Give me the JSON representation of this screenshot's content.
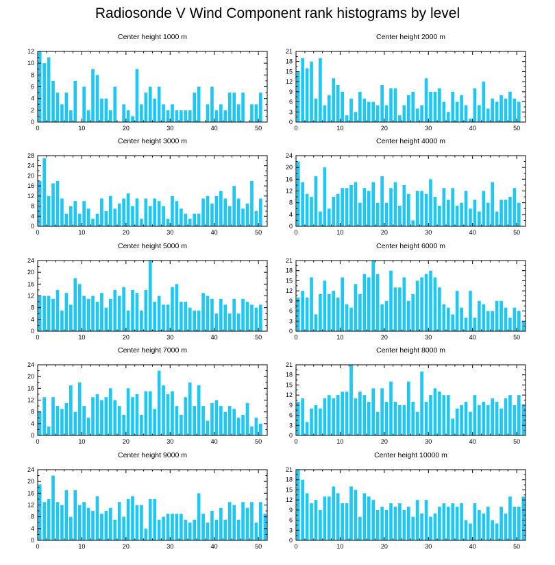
{
  "title": "Radiosonde V Wind Component rank histograms by level",
  "bar_color": "#1ec8f5",
  "chart_data": [
    {
      "type": "bar",
      "title": "Center height 1000 m",
      "xlim": [
        0,
        52
      ],
      "ylim": [
        0,
        12
      ],
      "xticks": [
        0,
        10,
        20,
        30,
        40,
        50
      ],
      "yticks": [
        0,
        2,
        4,
        6,
        8,
        10,
        12
      ],
      "values": [
        12,
        10,
        11,
        7,
        5,
        3,
        5,
        2,
        7,
        0,
        6,
        2,
        9,
        8,
        4,
        4,
        2,
        6,
        0,
        3,
        2,
        1,
        9,
        3,
        5,
        6,
        4,
        6,
        3,
        2,
        3,
        2,
        2,
        2,
        2,
        5,
        6,
        0,
        3,
        6,
        2,
        3,
        2,
        5,
        5,
        3,
        5,
        0,
        3,
        3,
        5
      ]
    },
    {
      "type": "bar",
      "title": "Center height 2000 m",
      "xlim": [
        0,
        52
      ],
      "ylim": [
        0,
        21
      ],
      "xticks": [
        0,
        10,
        20,
        30,
        40,
        50
      ],
      "yticks": [
        0,
        3,
        6,
        9,
        12,
        15,
        18,
        21
      ],
      "values": [
        15,
        19,
        16,
        18,
        7,
        19,
        5,
        8,
        13,
        11,
        9,
        2,
        7,
        3,
        9,
        7,
        6,
        6,
        5,
        11,
        5,
        10,
        10,
        2,
        5,
        8,
        9,
        4,
        5,
        13,
        9,
        9,
        10,
        6,
        3,
        9,
        6,
        8,
        5,
        1,
        10,
        5,
        12,
        4,
        7,
        6,
        8,
        7,
        9,
        7,
        6
      ]
    },
    {
      "type": "bar",
      "title": "Center height 3000 m",
      "xlim": [
        0,
        52
      ],
      "ylim": [
        0,
        28
      ],
      "xticks": [
        0,
        10,
        20,
        30,
        40,
        50
      ],
      "yticks": [
        0,
        4,
        8,
        12,
        16,
        20,
        24,
        28
      ],
      "values": [
        18,
        27,
        12,
        17,
        18,
        11,
        5,
        8,
        10,
        5,
        10,
        7,
        3,
        5,
        11,
        6,
        12,
        7,
        9,
        11,
        13,
        8,
        11,
        3,
        11,
        8,
        11,
        10,
        8,
        3,
        12,
        10,
        7,
        5,
        3,
        5,
        5,
        11,
        12,
        9,
        12,
        14,
        11,
        8,
        16,
        11,
        7,
        9,
        18,
        6,
        11
      ]
    },
    {
      "type": "bar",
      "title": "Center height 4000 m",
      "xlim": [
        0,
        52
      ],
      "ylim": [
        0,
        24
      ],
      "xticks": [
        0,
        10,
        20,
        30,
        40,
        50
      ],
      "yticks": [
        0,
        4,
        8,
        12,
        16,
        20,
        24
      ],
      "values": [
        22,
        15,
        11,
        10,
        17,
        5,
        20,
        6,
        10,
        11,
        13,
        13,
        14,
        15,
        8,
        13,
        12,
        15,
        8,
        17,
        8,
        13,
        15,
        7,
        14,
        11,
        2,
        12,
        12,
        11,
        16,
        10,
        7,
        13,
        9,
        13,
        7,
        8,
        12,
        6,
        9,
        5,
        12,
        8,
        15,
        5,
        9,
        9,
        10,
        13,
        8
      ]
    },
    {
      "type": "bar",
      "title": "Center height 5000 m",
      "xlim": [
        0,
        52
      ],
      "ylim": [
        0,
        24
      ],
      "xticks": [
        0,
        10,
        20,
        30,
        40,
        50
      ],
      "yticks": [
        0,
        4,
        8,
        12,
        16,
        20,
        24
      ],
      "values": [
        12,
        12,
        12,
        11,
        14,
        7,
        13,
        9,
        18,
        16,
        12,
        11,
        12,
        10,
        13,
        8,
        11,
        14,
        12,
        15,
        7,
        14,
        13,
        7,
        14,
        24,
        10,
        12,
        9,
        9,
        15,
        16,
        10,
        10,
        8,
        7,
        7,
        13,
        12,
        11,
        6,
        11,
        9,
        6,
        11,
        6,
        11,
        10,
        9,
        8,
        9
      ]
    },
    {
      "type": "bar",
      "title": "Center height 6000 m",
      "xlim": [
        0,
        52
      ],
      "ylim": [
        0,
        21
      ],
      "xticks": [
        0,
        10,
        20,
        30,
        40,
        50
      ],
      "yticks": [
        0,
        3,
        6,
        9,
        12,
        15,
        18,
        21
      ],
      "values": [
        10,
        12,
        10,
        16,
        5,
        11,
        15,
        11,
        12,
        10,
        16,
        8,
        7,
        14,
        11,
        17,
        16,
        21,
        17,
        8,
        9,
        18,
        13,
        13,
        16,
        9,
        11,
        15,
        16,
        17,
        18,
        16,
        13,
        8,
        7,
        5,
        12,
        7,
        4,
        12,
        4,
        9,
        8,
        6,
        6,
        9,
        9,
        7,
        4,
        7,
        6,
        3
      ]
    },
    {
      "type": "bar",
      "title": "Center height 7000 m",
      "xlim": [
        0,
        52
      ],
      "ylim": [
        0,
        24
      ],
      "xticks": [
        0,
        10,
        20,
        30,
        40,
        50
      ],
      "yticks": [
        0,
        4,
        8,
        12,
        16,
        20,
        24
      ],
      "values": [
        8,
        13,
        3,
        13,
        10,
        9,
        11,
        17,
        8,
        18,
        10,
        6,
        13,
        14,
        12,
        13,
        16,
        12,
        10,
        7,
        16,
        13,
        14,
        7,
        15,
        15,
        9,
        22,
        17,
        14,
        15,
        10,
        7,
        13,
        18,
        10,
        17,
        10,
        5,
        11,
        12,
        10,
        8,
        10,
        9,
        6,
        7,
        11,
        3,
        6,
        4
      ]
    },
    {
      "type": "bar",
      "title": "Center height 8000 m",
      "xlim": [
        0,
        52
      ],
      "ylim": [
        0,
        21
      ],
      "xticks": [
        0,
        10,
        20,
        30,
        40,
        50
      ],
      "yticks": [
        0,
        3,
        6,
        9,
        12,
        15,
        18,
        21
      ],
      "values": [
        10,
        11,
        4,
        8,
        9,
        8,
        11,
        12,
        11,
        12,
        13,
        13,
        21,
        11,
        13,
        12,
        10,
        14,
        7,
        14,
        10,
        16,
        10,
        9,
        9,
        16,
        10,
        7,
        19,
        10,
        12,
        14,
        13,
        12,
        12,
        5,
        8,
        9,
        10,
        7,
        12,
        9,
        10,
        9,
        11,
        10,
        8,
        11,
        12,
        9,
        12,
        9
      ]
    },
    {
      "type": "bar",
      "title": "Center height 9000 m",
      "xlim": [
        0,
        52
      ],
      "ylim": [
        0,
        24
      ],
      "xticks": [
        0,
        10,
        20,
        30,
        40,
        50
      ],
      "yticks": [
        0,
        4,
        8,
        12,
        16,
        20,
        24
      ],
      "values": [
        19,
        13,
        14,
        22,
        13,
        12,
        17,
        8,
        17,
        12,
        13,
        11,
        10,
        15,
        9,
        10,
        11,
        7,
        13,
        8,
        14,
        15,
        12,
        12,
        4,
        14,
        14,
        7,
        8,
        9,
        9,
        9,
        9,
        7,
        6,
        7,
        16,
        9,
        6,
        10,
        7,
        11,
        7,
        13,
        12,
        7,
        13,
        11,
        13,
        6,
        13,
        9
      ]
    },
    {
      "type": "bar",
      "title": "Center height 10000 m",
      "xlim": [
        0,
        52
      ],
      "ylim": [
        0,
        21
      ],
      "xticks": [
        0,
        10,
        20,
        30,
        40,
        50
      ],
      "yticks": [
        0,
        3,
        6,
        9,
        12,
        15,
        18,
        21
      ],
      "values": [
        21,
        18,
        14,
        11,
        12,
        9,
        13,
        13,
        16,
        14,
        11,
        11,
        16,
        15,
        7,
        14,
        13,
        12,
        9,
        10,
        9,
        11,
        10,
        11,
        9,
        10,
        7,
        12,
        8,
        12,
        7,
        8,
        10,
        11,
        10,
        11,
        10,
        11,
        6,
        5,
        11,
        9,
        8,
        10,
        6,
        5,
        10,
        8,
        13,
        10,
        10,
        13
      ]
    }
  ]
}
